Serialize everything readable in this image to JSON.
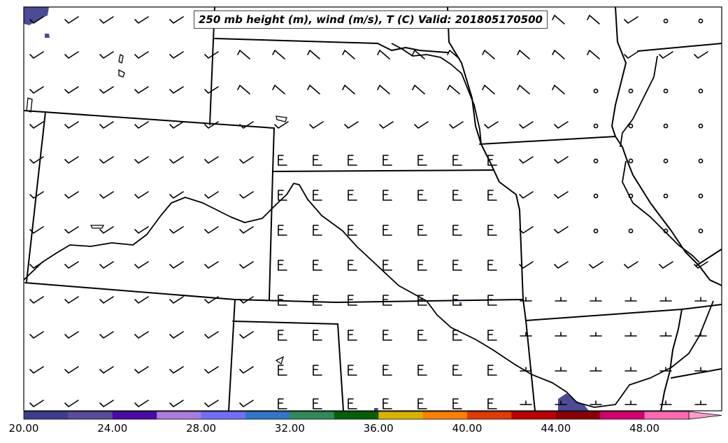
{
  "title": "250 mb height (m), wind (m/s), T (C) Valid: 201805170500",
  "colorbar": {
    "tick_labels": [
      "20.00",
      "24.00",
      "28.00",
      "32.00",
      "36.00",
      "40.00",
      "44.00",
      "48.00"
    ],
    "colors": [
      "#3d3d8f",
      "#5b4b9b",
      "#4b0aa8",
      "#a87be0",
      "#6f6ff5",
      "#2f78c8",
      "#2e8b57",
      "#066106",
      "#d9b100",
      "#ff8000",
      "#e23a00",
      "#c00000",
      "#8b0000",
      "#d4006f",
      "#ff69b4",
      "#ff9acd"
    ]
  },
  "legend_color": "#4b4b96"
}
